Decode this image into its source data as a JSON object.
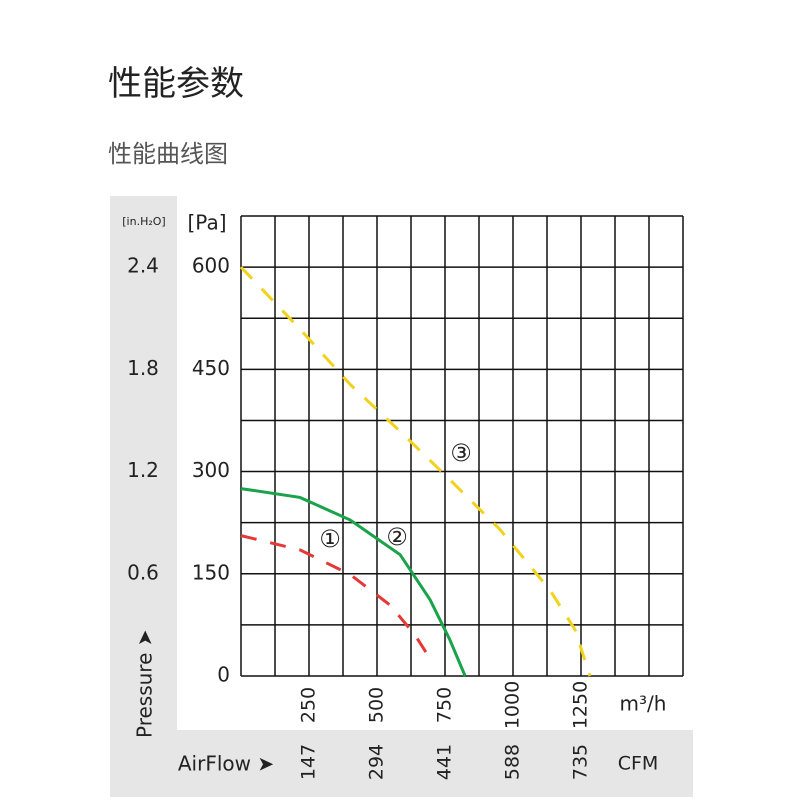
{
  "header": {
    "title": "性能参数",
    "subtitle": "性能曲线图"
  },
  "chart_data": {
    "type": "line",
    "x_label": "m³/h",
    "y_label": "[Pa]",
    "y2_label": "[in.H₂O]",
    "x2_label": "CFM",
    "airflow_label": "AirFlow ➤",
    "pressure_label": "Pressure ➤",
    "xlim": [
      0,
      1625
    ],
    "xticks": [
      250,
      500,
      750,
      1000,
      1250
    ],
    "xgrid": [
      0,
      125,
      250,
      375,
      500,
      625,
      750,
      875,
      1000,
      1125,
      1250,
      1375,
      1500,
      1625
    ],
    "x2lim": [
      0,
      955.5
    ],
    "x2ticks": [
      147,
      294,
      441,
      588,
      735
    ],
    "ylim": [
      0,
      675
    ],
    "yticks": [
      0,
      150,
      300,
      450,
      600
    ],
    "ygrid": [
      0,
      75,
      150,
      225,
      300,
      375,
      450,
      525,
      600,
      675
    ],
    "y2lim": [
      0,
      2.7
    ],
    "y2ticks": [
      0.6,
      1.2,
      1.8,
      2.4
    ],
    "grid": true,
    "series": [
      {
        "name": "①",
        "color": "#e53935",
        "dashed": true,
        "x": [
          0,
          217,
          401,
          548,
          640,
          702
        ],
        "values": [
          206,
          185,
          149,
          104,
          60,
          21
        ]
      },
      {
        "name": "②",
        "color": "#1aa34a",
        "dashed": false,
        "x": [
          0,
          217,
          401,
          585,
          695,
          768,
          824
        ],
        "values": [
          275,
          262,
          229,
          178,
          112,
          53,
          0
        ]
      },
      {
        "name": "③",
        "color": "#f2d21b",
        "dashed": true,
        "x": [
          0,
          217,
          401,
          585,
          768,
          952,
          1136,
          1228,
          1283
        ],
        "values": [
          600,
          509,
          428,
          359,
          288,
          215,
          126,
          68,
          0
        ]
      }
    ]
  }
}
